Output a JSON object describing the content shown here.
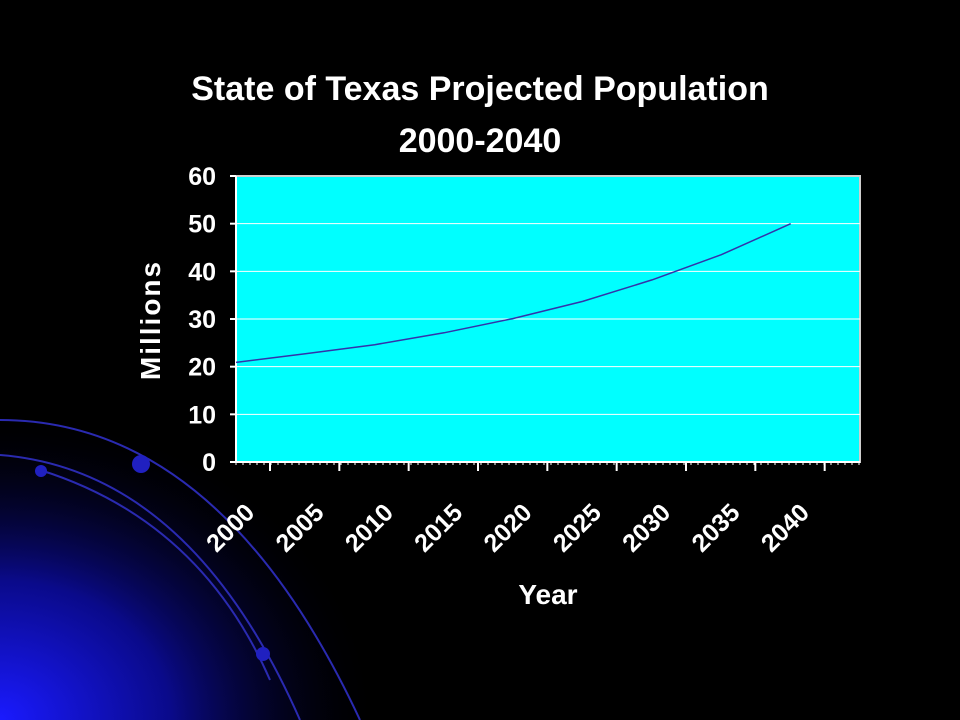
{
  "slide": {
    "background": "#000000",
    "accent": "#1a1aff"
  },
  "chart_data": {
    "type": "line",
    "title": "State of Texas Projected Population",
    "subtitle": "2000-2040",
    "xlabel": "Year",
    "ylabel": "Millions",
    "x": [
      2000,
      2005,
      2010,
      2015,
      2020,
      2025,
      2030,
      2035,
      2040
    ],
    "categories": [
      "2000",
      "2005",
      "2010",
      "2015",
      "2020",
      "2025",
      "2030",
      "2035",
      "2040"
    ],
    "series": [
      {
        "values": [
          20.9,
          22.7,
          24.6,
          27.1,
          30.1,
          33.7,
          38.2,
          43.5,
          50.0
        ],
        "color": "#3333aa"
      }
    ],
    "ylim": [
      0,
      60
    ],
    "yticks": [
      "0",
      "10",
      "20",
      "30",
      "40",
      "50",
      "60"
    ],
    "plot_background": "#00ffff",
    "gridlines": true,
    "legend": "none"
  }
}
